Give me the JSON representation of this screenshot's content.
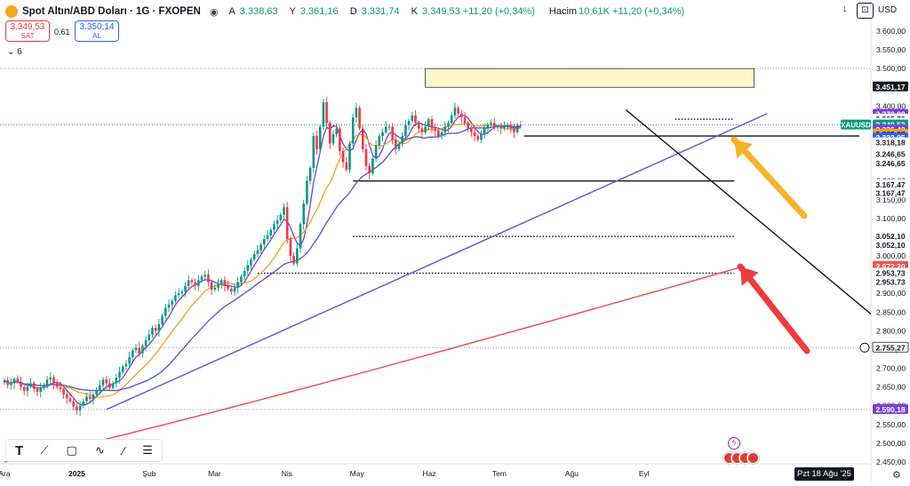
{
  "header": {
    "title": "Spot Altın/ABD Doları · 1G · FXOPEN",
    "ohlc": [
      {
        "k": "A",
        "v": "3.338,63"
      },
      {
        "k": "Y",
        "v": "3.361,16"
      },
      {
        "k": "D",
        "v": "3.331,74"
      },
      {
        "k": "K",
        "v": "3.349,53 +11,20 (+0,34%)"
      }
    ],
    "volume_label": "Hacim",
    "volume_value": "10,61K +11,20 (+0,34%)"
  },
  "trade": {
    "sell_price": "3.349,53",
    "sell_label": "SAT",
    "spread": "0,61",
    "buy_price": "3.350,14",
    "buy_label": "AL"
  },
  "indicators_count": "6",
  "currency": "USD",
  "date_label": "Pzt 18 Ağu '25",
  "colors": {
    "up": "#089981",
    "down": "#f23645",
    "ma_fast": "#7b3fd6",
    "ma_mid": "#f7a21b",
    "ma_slow": "#5b5bd6",
    "ma_long": "#ef5350",
    "trend": "#7256d8"
  },
  "chart_data": {
    "type": "candlestick",
    "symbol": "XAUUSD",
    "y_axis": {
      "min": 2450,
      "max": 3600,
      "ticks": [
        3600,
        3550,
        3500,
        3450,
        3400,
        3350,
        3300,
        3250,
        3200,
        3150,
        3100,
        3050,
        3000,
        2950,
        2900,
        2850,
        2800,
        2750,
        2700,
        2650,
        2600,
        2550,
        2500,
        2450
      ]
    },
    "y_tick_labels": [
      "3.600,00",
      "3.550,00",
      "3.500,00",
      "3.450,00",
      "3.400,00",
      "3.350,00",
      "3.300,00",
      "3.250,00",
      "3.200,00",
      "3.150,00",
      "3.100,00",
      "3.050,00",
      "3.000,00",
      "2.950,00",
      "2.900,00",
      "2.850,00",
      "2.800,00",
      "2.750,00",
      "2.700,00",
      "2.650,00",
      "2.600,00",
      "2.550,00",
      "2.500,00",
      "2.450,00"
    ],
    "x_labels": [
      {
        "text": "Ara",
        "day": 0
      },
      {
        "text": "2025",
        "day": 31
      },
      {
        "text": "Şub",
        "day": 62
      },
      {
        "text": "Mar",
        "day": 90
      },
      {
        "text": "Nis",
        "day": 121
      },
      {
        "text": "May",
        "day": 151
      },
      {
        "text": "Haz",
        "day": 182
      },
      {
        "text": "Tem",
        "day": 212
      },
      {
        "text": "Ağu",
        "day": 243
      },
      {
        "text": "Eyl",
        "day": 274
      }
    ],
    "closes": [
      2668,
      2655,
      2660,
      2672,
      2664,
      2650,
      2640,
      2652,
      2660,
      2645,
      2637,
      2648,
      2655,
      2670,
      2676,
      2660,
      2650,
      2645,
      2630,
      2620,
      2612,
      2598,
      2588,
      2600,
      2612,
      2625,
      2618,
      2630,
      2640,
      2655,
      2670,
      2660,
      2648,
      2660,
      2675,
      2690,
      2705,
      2712,
      2730,
      2748,
      2755,
      2740,
      2760,
      2775,
      2790,
      2808,
      2800,
      2818,
      2840,
      2862,
      2870,
      2880,
      2895,
      2900,
      2905,
      2920,
      2935,
      2930,
      2920,
      2935,
      2945,
      2950,
      2930,
      2910,
      2915,
      2925,
      2935,
      2920,
      2912,
      2905,
      2915,
      2930,
      2945,
      2960,
      2975,
      2990,
      3005,
      3015,
      3030,
      3045,
      3055,
      3070,
      3085,
      3095,
      3110,
      3130,
      3045,
      3000,
      2980,
      3020,
      3085,
      3140,
      3200,
      3235,
      3320,
      3285,
      3345,
      3410,
      3355,
      3300,
      3325,
      3340,
      3280,
      3250,
      3230,
      3300,
      3370,
      3395,
      3340,
      3285,
      3240,
      3220,
      3260,
      3295,
      3320,
      3330,
      3345,
      3345,
      3310,
      3285,
      3300,
      3320,
      3350,
      3360,
      3375,
      3355,
      3340,
      3330,
      3345,
      3365,
      3340,
      3335,
      3320,
      3330,
      3345,
      3355,
      3375,
      3395,
      3380,
      3370,
      3355,
      3340,
      3330,
      3320,
      3310,
      3325,
      3340,
      3350,
      3355,
      3345,
      3345,
      3340,
      3345,
      3350,
      3340,
      3330,
      3350,
      3349.53
    ],
    "overlays": [
      {
        "name": "MA fast",
        "color": "#7b3fd6"
      },
      {
        "name": "MA mid",
        "color": "#f7a21b"
      },
      {
        "name": "MA slow",
        "color": "#5b5bd6"
      },
      {
        "name": "MA long",
        "color": "#ef5350"
      }
    ],
    "horizontal_levels": [
      {
        "kind": "solid",
        "value": 3320
      },
      {
        "kind": "solid",
        "value": 3200
      },
      {
        "kind": "dotted",
        "value": 3052
      },
      {
        "kind": "dotted",
        "value": 2954
      },
      {
        "kind": "dotted",
        "value": 3365
      }
    ],
    "resistance_zone": [
      3450,
      3500
    ],
    "price_labels": [
      {
        "text": "3.451,17",
        "bg": "#131722",
        "fg": "#ffffff",
        "v": 3451.17
      },
      {
        "text": "3.378,00",
        "bg": "#7b3fd6",
        "fg": "#ffffff",
        "v": 3378
      },
      {
        "text": "3.365,70",
        "bg": "#ffffff",
        "fg": "#131722",
        "v": 3365.7
      },
      {
        "text": "3.365,70",
        "bg": "#ffffff",
        "fg": "#131722",
        "v": 3355
      },
      {
        "text": "3.349,53",
        "bg": "#089981",
        "fg": "#ffffff",
        "v": 3349.53
      },
      {
        "text": "3.336,40",
        "bg": "#7b3fd6",
        "fg": "#ffffff",
        "v": 3336.4
      },
      {
        "text": "3.332,28",
        "bg": "#f7a21b",
        "fg": "#131722",
        "v": 3325
      },
      {
        "text": "3.323,95",
        "bg": "#2962ff",
        "fg": "#ffffff",
        "v": 3315
      },
      {
        "text": "3.318,18",
        "bg": "#ffffff",
        "fg": "#131722",
        "v": 3302
      },
      {
        "text": "3.246,65",
        "bg": "#ffffff",
        "fg": "#131722",
        "v": 3272
      },
      {
        "text": "3.246,65",
        "bg": "#ffffff",
        "fg": "#131722",
        "v": 3246.65
      },
      {
        "text": "3.167,47",
        "bg": "#ffffff",
        "fg": "#131722",
        "v": 3190
      },
      {
        "text": "3.167,47",
        "bg": "#ffffff",
        "fg": "#131722",
        "v": 3167.47
      },
      {
        "text": "3.052,10",
        "bg": "#ffffff",
        "fg": "#131722",
        "v": 3052.1
      },
      {
        "text": "3.052,10",
        "bg": "#ffffff",
        "fg": "#131722",
        "v": 3028
      },
      {
        "text": "2.972,20",
        "bg": "#ef5350",
        "fg": "#ffffff",
        "v": 2972.2
      },
      {
        "text": "2.953,73",
        "bg": "#ffffff",
        "fg": "#131722",
        "v": 2953.73
      },
      {
        "text": "2.953,73",
        "bg": "#ffffff",
        "fg": "#131722",
        "v": 2930
      },
      {
        "text": "2.755,27",
        "bg": "#ffffff",
        "fg": "#131722",
        "v": 2755.27,
        "bordered": true
      },
      {
        "text": "2.590,18",
        "bg": "#7b3fd6",
        "fg": "#ffffff",
        "v": 2590.18
      }
    ],
    "symbol_tag": {
      "text": "XAUUSD",
      "bg": "#089981",
      "fg": "#ffffff",
      "v": 3349.53
    }
  }
}
